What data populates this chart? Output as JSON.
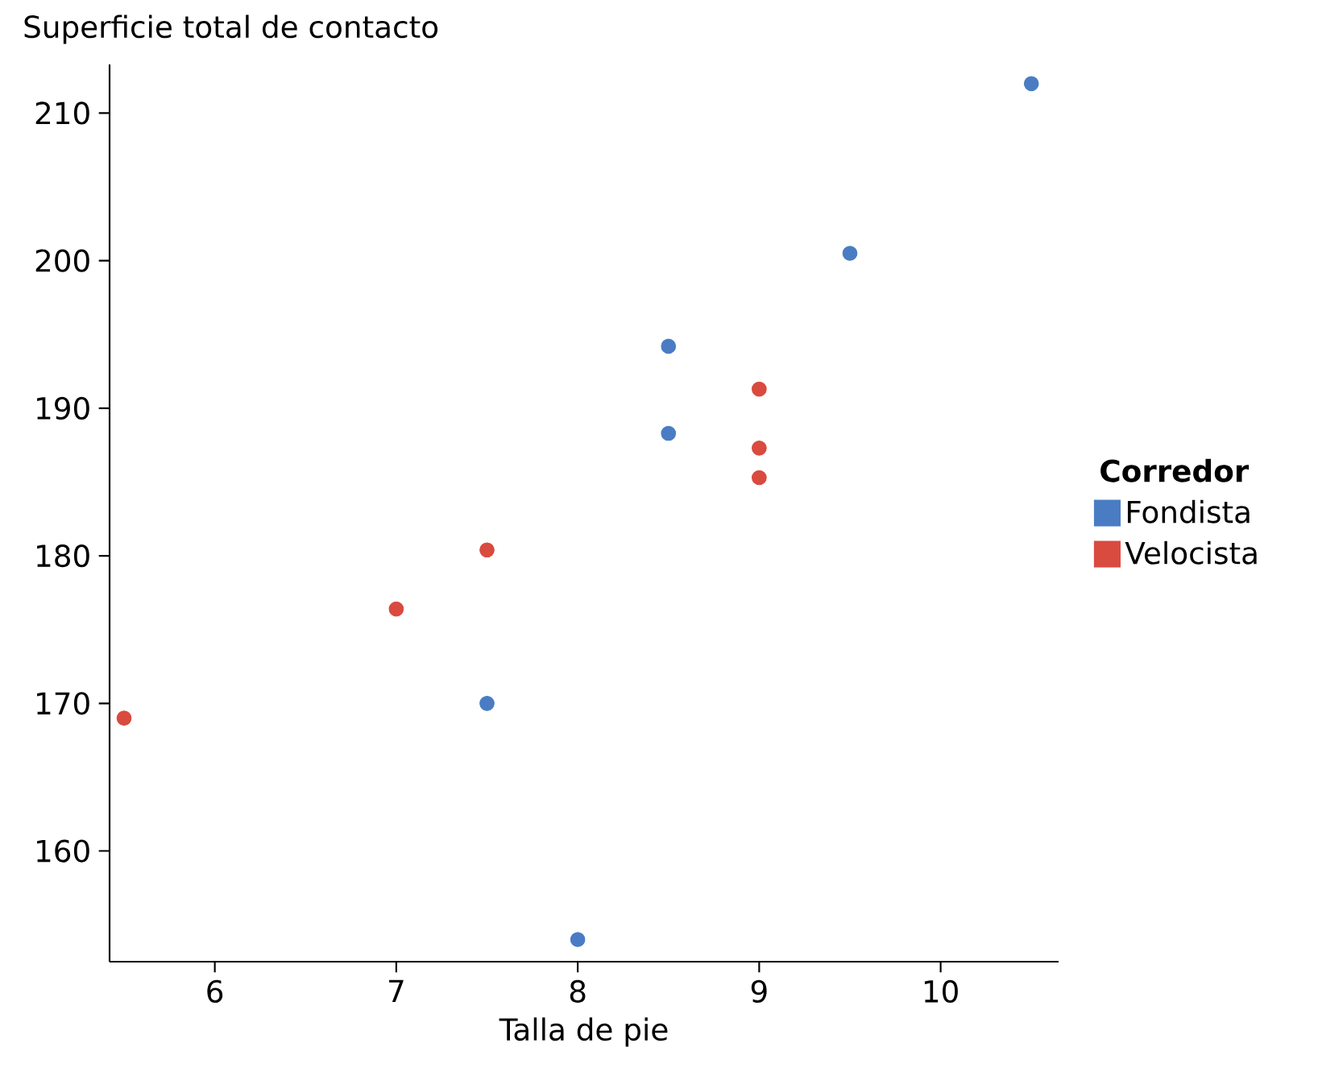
{
  "chart_data": {
    "type": "scatter",
    "ylabel": "Superficie total de contacto",
    "xlabel": "Talla de pie",
    "legend_title": "Corredor",
    "series": [
      {
        "name": "Fondista",
        "color": "#4a7cc4",
        "x": [
          10.5,
          9.5,
          8.5,
          8.5,
          7.5,
          8
        ],
        "values": [
          212,
          200.5,
          194.2,
          188.3,
          170,
          154
        ]
      },
      {
        "name": "Velocista",
        "color": "#d94a3f",
        "x": [
          9,
          9,
          9,
          7.5,
          7,
          5.5
        ],
        "values": [
          191.3,
          187.3,
          185.3,
          180.4,
          176.4,
          169
        ]
      }
    ],
    "xlim": [
      5.42,
      10.65
    ],
    "ylim": [
      152.5,
      213.3
    ],
    "xticks": [
      6,
      7,
      8,
      9,
      10
    ],
    "yticks": [
      160,
      170,
      180,
      190,
      200,
      210
    ],
    "legend": "right",
    "grid": false
  }
}
